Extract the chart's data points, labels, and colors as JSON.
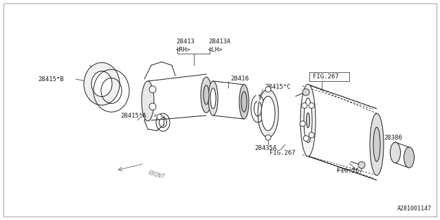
{
  "background_color": "#ffffff",
  "part_number": "A281001147",
  "line_color": "#1a1a1a",
  "font_size": 6.5,
  "font_family": "monospace",
  "border_color": "#aaaaaa",
  "parts": {
    "28415B_label": "28415*B",
    "28413_label": "28413",
    "28413A_label": "28413A",
    "RH_label": "<RH>",
    "LH_label": "<LH>",
    "28415A_label": "28415*A",
    "28416_label": "28416",
    "28415C_label": "28415*C",
    "28435A_label": "28435A",
    "FIG267_label": "FIG.267",
    "28386_label": "28386",
    "FRONT_label": "FRONT"
  }
}
